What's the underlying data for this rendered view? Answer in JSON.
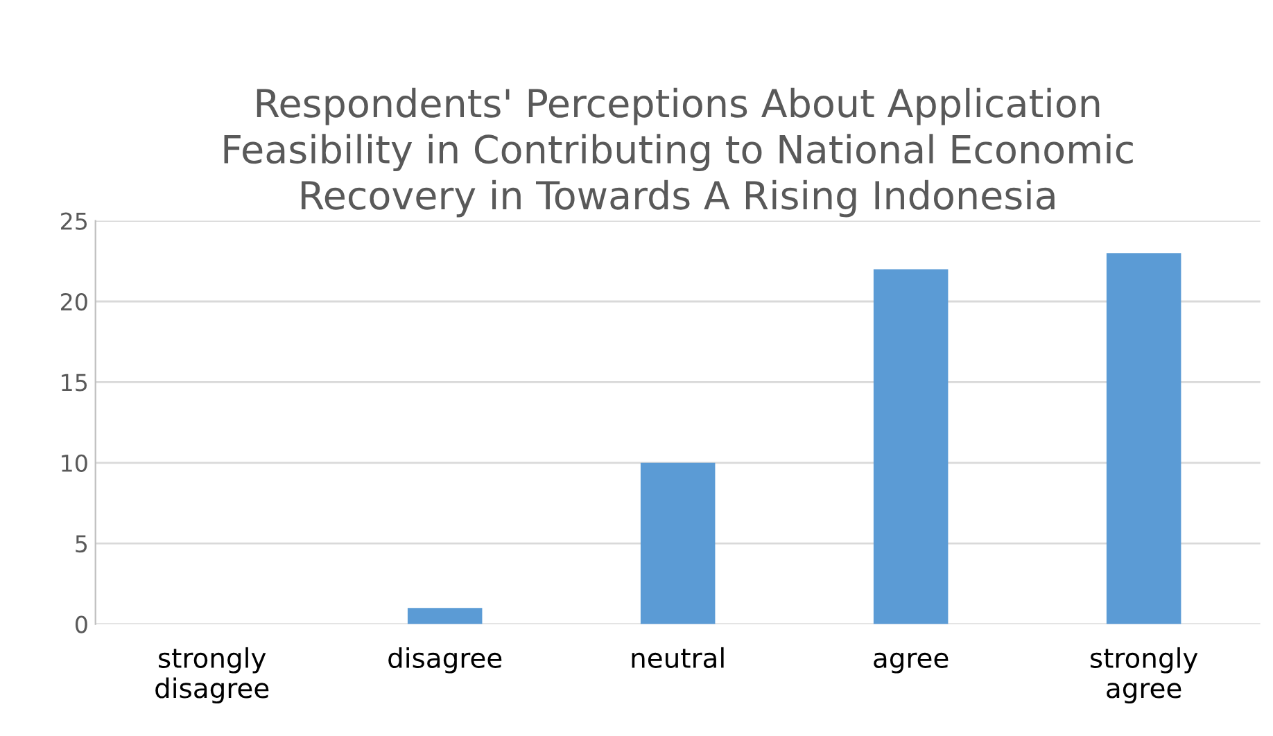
{
  "chart_data": {
    "type": "bar",
    "title": "Respondents' Perceptions About Application\nFeasibility in Contributing to National Economic\nRecovery in Towards A Rising Indonesia",
    "categories": [
      "strongly\ndisagree",
      "disagree",
      "neutral",
      "agree",
      "strongly\nagree"
    ],
    "values": [
      0,
      1,
      10,
      22,
      23
    ],
    "color": "#5b9bd5",
    "ylim": [
      0,
      25
    ],
    "yticks": [
      0,
      5,
      10,
      15,
      20,
      25
    ],
    "grid": "y"
  }
}
